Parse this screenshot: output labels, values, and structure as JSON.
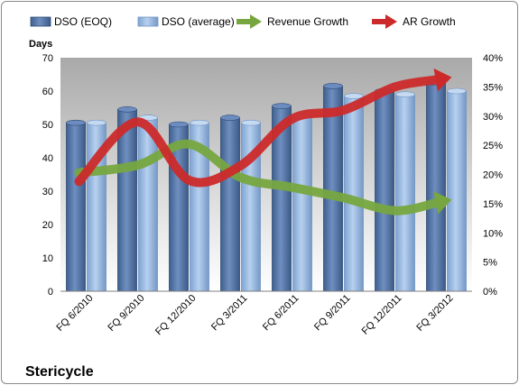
{
  "chart_data": {
    "type": "bar",
    "company": "Stericycle",
    "categories": [
      "FQ 6/2010",
      "FQ 9/2010",
      "FQ 12/2010",
      "FQ 3/2011",
      "FQ 6/2011",
      "FQ 9/2011",
      "FQ 12/2011",
      "FQ 3/2012"
    ],
    "ylabel": "Days",
    "ylim": [
      0,
      70
    ],
    "yticks": [
      "0",
      "10",
      "20",
      "30",
      "40",
      "50",
      "60",
      "70"
    ],
    "y2lim": [
      0,
      0.4
    ],
    "y2ticks": [
      "0%",
      "5%",
      "10%",
      "15%",
      "20%",
      "25%",
      "30%",
      "35%",
      "40%"
    ],
    "legend_position": "top",
    "grid": false,
    "series": [
      {
        "name": "DSO (EOQ)",
        "type": "bar",
        "axis": "left",
        "color": "#4f6fa0",
        "values": [
          50.5,
          54.5,
          50,
          52,
          55.5,
          61.5,
          60,
          62.5
        ]
      },
      {
        "name": "DSO (average)",
        "type": "bar",
        "axis": "left",
        "color": "#8db0dc",
        "values": [
          50.5,
          52,
          50.5,
          50.5,
          52.5,
          58.5,
          59,
          60
        ]
      },
      {
        "name": "Revenue Growth",
        "type": "line",
        "axis": "right",
        "color": "#77a640",
        "values": [
          0.203,
          0.216,
          0.252,
          0.195,
          0.178,
          0.16,
          0.138,
          0.155
        ]
      },
      {
        "name": "AR Growth",
        "type": "line",
        "axis": "right",
        "color": "#cc2a2a",
        "values": [
          0.188,
          0.29,
          0.19,
          0.215,
          0.295,
          0.31,
          0.35,
          0.365
        ]
      }
    ]
  }
}
